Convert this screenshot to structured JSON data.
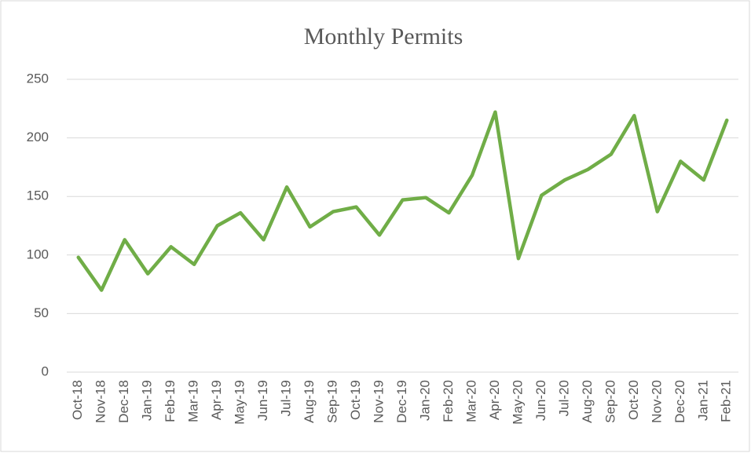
{
  "chart_data": {
    "type": "line",
    "title": "Monthly Permits",
    "categories": [
      "Oct-18",
      "Nov-18",
      "Dec-18",
      "Jan-19",
      "Feb-19",
      "Mar-19",
      "Apr-19",
      "May-19",
      "Jun-19",
      "Jul-19",
      "Aug-19",
      "Sep-19",
      "Oct-19",
      "Nov-19",
      "Dec-19",
      "Jan-20",
      "Feb-20",
      "Mar-20",
      "Apr-20",
      "May-20",
      "Jun-20",
      "Jul-20",
      "Aug-20",
      "Sep-20",
      "Oct-20",
      "Nov-20",
      "Dec-20",
      "Jan-21",
      "Feb-21"
    ],
    "values": [
      98,
      70,
      113,
      84,
      107,
      92,
      125,
      136,
      113,
      158,
      124,
      137,
      141,
      117,
      147,
      149,
      136,
      168,
      222,
      97,
      151,
      164,
      173,
      186,
      219,
      137,
      180,
      164,
      215
    ],
    "color": "#70ad47",
    "ylim": [
      0,
      250
    ],
    "yticks": [
      0,
      50,
      100,
      150,
      200,
      250
    ],
    "grid": true
  }
}
